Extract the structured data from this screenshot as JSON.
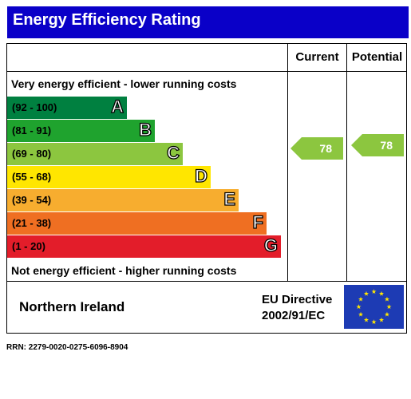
{
  "title": "Energy Efficiency Rating",
  "columns": {
    "current": "Current",
    "potential": "Potential"
  },
  "top_caption": "Very energy efficient - lower running costs",
  "bottom_caption": "Not energy efficient - higher running costs",
  "bands": [
    {
      "range": "(92 - 100)",
      "letter": "A",
      "color": "#008040"
    },
    {
      "range": "(81 - 91)",
      "letter": "B",
      "color": "#1fa32e"
    },
    {
      "range": "(69 - 80)",
      "letter": "C",
      "color": "#8cc63f"
    },
    {
      "range": "(55 - 68)",
      "letter": "D",
      "color": "#ffe600"
    },
    {
      "range": "(39 - 54)",
      "letter": "E",
      "color": "#f7ad2f"
    },
    {
      "range": "(21 - 38)",
      "letter": "F",
      "color": "#ef6f22"
    },
    {
      "range": "(1 - 20)",
      "letter": "G",
      "color": "#e31d2a"
    }
  ],
  "ratings": {
    "current": {
      "value": "78",
      "color": "#8cc63f"
    },
    "potential": {
      "value": "78",
      "color": "#8cc63f"
    }
  },
  "footer": {
    "region": "Northern Ireland",
    "directive_line1": "EU Directive",
    "directive_line2": "2002/91/EC",
    "flag_icon": "eu-flag-icon"
  },
  "rrn": "RRN: 2279-0020-0275-6096-8904"
}
